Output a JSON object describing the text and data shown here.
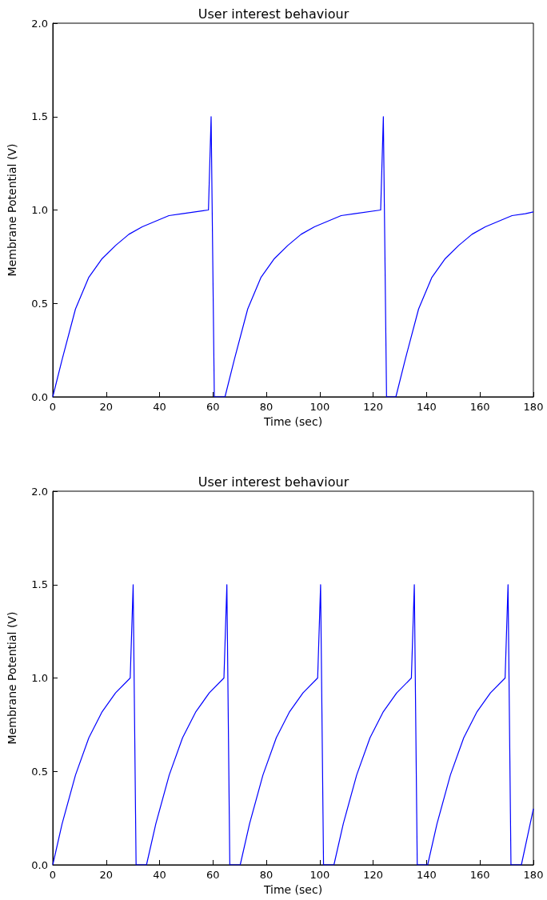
{
  "chart_data": [
    {
      "type": "line",
      "title": "User interest behaviour",
      "xlabel": "Time (sec)",
      "ylabel": "Membrane Potential (V)",
      "color": "#0000ff",
      "marker": "none",
      "line_style": "solid",
      "x": [
        0,
        3.5,
        8.5,
        13.5,
        18.5,
        23.5,
        28.5,
        33.5,
        38.5,
        43.5,
        48.5,
        58.3,
        59.3,
        60.5,
        64.5,
        68,
        73,
        78,
        83,
        88,
        93,
        98,
        103,
        108,
        113,
        122.8,
        123.8,
        125,
        128.5,
        132,
        137,
        142,
        147,
        152,
        157,
        162,
        167,
        172,
        177,
        180
      ],
      "values": [
        0,
        0.2,
        0.47,
        0.64,
        0.74,
        0.81,
        0.87,
        0.91,
        0.94,
        0.97,
        0.98,
        1.0,
        1.5,
        0,
        0,
        0.2,
        0.47,
        0.64,
        0.74,
        0.81,
        0.87,
        0.91,
        0.94,
        0.97,
        0.98,
        1.0,
        1.5,
        0,
        0,
        0.2,
        0.47,
        0.64,
        0.74,
        0.81,
        0.87,
        0.91,
        0.94,
        0.97,
        0.98,
        0.99
      ],
      "xlim": [
        0,
        180
      ],
      "xticks": [
        0,
        20,
        40,
        60,
        80,
        100,
        120,
        140,
        160,
        180
      ],
      "ylim": [
        0,
        2
      ],
      "yticks": [
        {
          "value": 0,
          "label": "0.0"
        },
        {
          "value": 0.5,
          "label": "0.5"
        },
        {
          "value": 1,
          "label": "1.0"
        },
        {
          "value": 1.5,
          "label": "1.5"
        },
        {
          "value": 2,
          "label": "2.0"
        }
      ]
    },
    {
      "type": "line",
      "title": "User interest behaviour",
      "xlabel": "Time (sec)",
      "ylabel": "Membrane Potential (V)",
      "color": "#0000ff",
      "marker": "none",
      "line_style": "solid",
      "x": [
        0,
        3.5,
        8.5,
        13.5,
        18.5,
        23.5,
        29,
        30.1,
        31.2,
        35.1,
        38.6,
        43.6,
        48.6,
        53.6,
        58.6,
        64.1,
        65.2,
        66.3,
        70.2,
        73.7,
        78.7,
        83.7,
        88.7,
        93.7,
        99.2,
        100.3,
        101.4,
        105.3,
        108.8,
        113.8,
        118.8,
        123.8,
        128.8,
        134.3,
        135.4,
        136.5,
        140.4,
        143.9,
        148.9,
        153.9,
        158.9,
        163.9,
        169.4,
        170.5,
        171.6,
        175.5,
        180
      ],
      "values": [
        0,
        0.22,
        0.48,
        0.68,
        0.82,
        0.92,
        1.0,
        1.5,
        0,
        0,
        0.22,
        0.48,
        0.68,
        0.82,
        0.92,
        1.0,
        1.5,
        0,
        0,
        0.22,
        0.48,
        0.68,
        0.82,
        0.92,
        1.0,
        1.5,
        0,
        0,
        0.22,
        0.48,
        0.68,
        0.82,
        0.92,
        1.0,
        1.5,
        0,
        0,
        0.22,
        0.48,
        0.68,
        0.82,
        0.92,
        1.0,
        1.5,
        0,
        0,
        0.3
      ],
      "xlim": [
        0,
        180
      ],
      "xticks": [
        0,
        20,
        40,
        60,
        80,
        100,
        120,
        140,
        160,
        180
      ],
      "ylim": [
        0,
        2
      ],
      "yticks": [
        {
          "value": 0,
          "label": "0.0"
        },
        {
          "value": 0.5,
          "label": "0.5"
        },
        {
          "value": 1,
          "label": "1.0"
        },
        {
          "value": 1.5,
          "label": "1.5"
        },
        {
          "value": 2,
          "label": "2.0"
        }
      ]
    }
  ]
}
